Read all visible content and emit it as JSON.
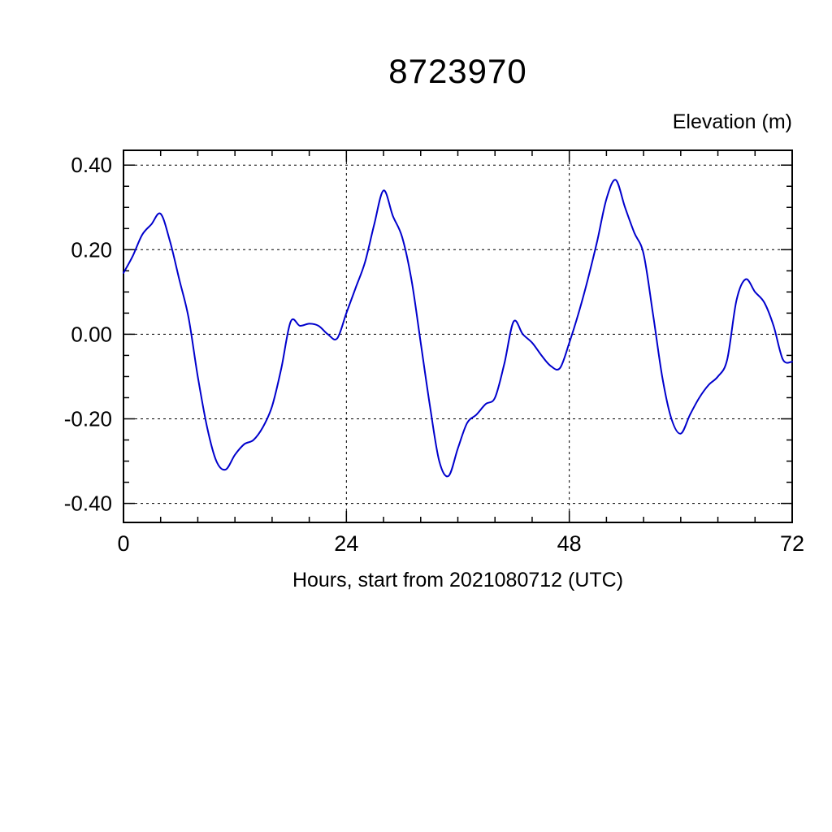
{
  "page": {
    "background": "#ffffff"
  },
  "chart_data": {
    "type": "line",
    "title": "8723970",
    "axis_label_right": "Elevation (m)",
    "xlabel": "Hours, start from 2021080712 (UTC)",
    "xlim": [
      0,
      72
    ],
    "ylim": [
      -0.445,
      0.435
    ],
    "xticks": {
      "values": [
        0,
        24,
        48,
        72
      ],
      "labels": [
        "0",
        "24",
        "48",
        "72"
      ],
      "minor_step": 4
    },
    "yticks": {
      "values": [
        -0.4,
        -0.2,
        0.0,
        0.2,
        0.4
      ],
      "labels": [
        "-0.40",
        "-0.20",
        "0.00",
        "0.20",
        "0.40"
      ],
      "minor_step": 0.05
    },
    "grid": {
      "x": [
        24,
        48
      ],
      "y": [
        -0.4,
        -0.2,
        0.0,
        0.2,
        0.4
      ],
      "style": "dotted"
    },
    "line_color": "#0000cc",
    "frame_color": "#000000",
    "series": [
      {
        "name": "elevation_m",
        "x": [
          0,
          1,
          2,
          3,
          4,
          5,
          6,
          7,
          8,
          9,
          10,
          11,
          12,
          13,
          14,
          15,
          16,
          17,
          18,
          19,
          20,
          21,
          22,
          23,
          24,
          25,
          26,
          27,
          28,
          29,
          30,
          31,
          32,
          33,
          34,
          35,
          36,
          37,
          38,
          39,
          40,
          41,
          42,
          43,
          44,
          45,
          46,
          47,
          48,
          49,
          50,
          51,
          52,
          53,
          54,
          55,
          56,
          57,
          58,
          59,
          60,
          61,
          62,
          63,
          64,
          65,
          66,
          67,
          68,
          69,
          70,
          71,
          72
        ],
        "y": [
          0.145,
          0.185,
          0.235,
          0.26,
          0.285,
          0.22,
          0.13,
          0.04,
          -0.1,
          -0.22,
          -0.3,
          -0.32,
          -0.285,
          -0.26,
          -0.25,
          -0.22,
          -0.17,
          -0.08,
          0.03,
          0.02,
          0.025,
          0.02,
          0.0,
          -0.01,
          0.05,
          0.11,
          0.17,
          0.26,
          0.34,
          0.28,
          0.23,
          0.13,
          -0.02,
          -0.17,
          -0.3,
          -0.335,
          -0.27,
          -0.21,
          -0.19,
          -0.165,
          -0.15,
          -0.07,
          0.03,
          0.0,
          -0.02,
          -0.05,
          -0.075,
          -0.08,
          -0.02,
          0.05,
          0.13,
          0.22,
          0.32,
          0.365,
          0.3,
          0.24,
          0.19,
          0.05,
          -0.1,
          -0.2,
          -0.235,
          -0.19,
          -0.15,
          -0.12,
          -0.1,
          -0.06,
          0.08,
          0.13,
          0.1,
          0.075,
          0.02,
          -0.06,
          -0.065
        ]
      }
    ]
  }
}
